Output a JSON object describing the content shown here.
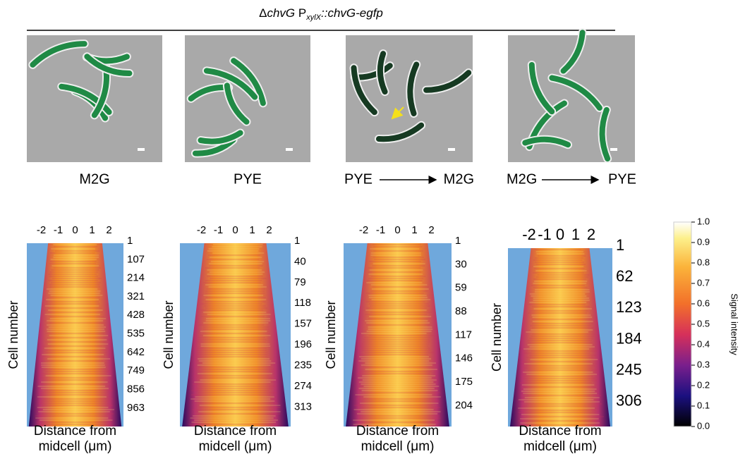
{
  "figure": {
    "title": {
      "delta": "Δ",
      "gene": "chvG",
      "promoter": " P",
      "subscript": "xylX",
      "rest": "::chvG-egfp"
    },
    "conditions": [
      {
        "label": "M2G"
      },
      {
        "label": "PYE"
      },
      {
        "from": "PYE",
        "to": "M2G"
      },
      {
        "from": "M2G",
        "to": "PYE"
      }
    ],
    "demographs": [
      {
        "x_ticks": [
          "-2",
          "-1",
          "0",
          "1",
          "2"
        ],
        "y_ticks": [
          "1",
          "107",
          "214",
          "321",
          "428",
          "535",
          "642",
          "749",
          "856",
          "963"
        ],
        "y_label": "Cell number",
        "x_label_line1": "Distance from",
        "x_label_line2": "midcell (μm)"
      },
      {
        "x_ticks": [
          "-2",
          "-1",
          "0",
          "1",
          "2"
        ],
        "y_ticks": [
          "1",
          "40",
          "79",
          "118",
          "157",
          "196",
          "235",
          "274",
          "313"
        ],
        "y_label": "Cell number",
        "x_label_line1": "Distance from",
        "x_label_line2": "midcell (μm)"
      },
      {
        "x_ticks": [
          "-2",
          "-1",
          "0",
          "1",
          "2"
        ],
        "y_ticks": [
          "1",
          "30",
          "59",
          "88",
          "117",
          "146",
          "175",
          "204"
        ],
        "y_label": "Cell number",
        "x_label_line1": "Distance from",
        "x_label_line2": "midcell (μm)"
      },
      {
        "x_ticks": [
          "-2",
          "-1",
          "0",
          "1",
          "2"
        ],
        "y_ticks": [
          "1",
          "62",
          "123",
          "184",
          "245",
          "306"
        ],
        "y_label": "Cell number",
        "x_label_line1": "Distance from",
        "x_label_line2": "midcell (μm)"
      }
    ],
    "colorbar": {
      "ticks": [
        "1.0",
        "0.9",
        "0.8",
        "0.7",
        "0.6",
        "0.5",
        "0.4",
        "0.3",
        "0.2",
        "0.1",
        "0.0"
      ],
      "label": "Signal intensity"
    }
  }
}
